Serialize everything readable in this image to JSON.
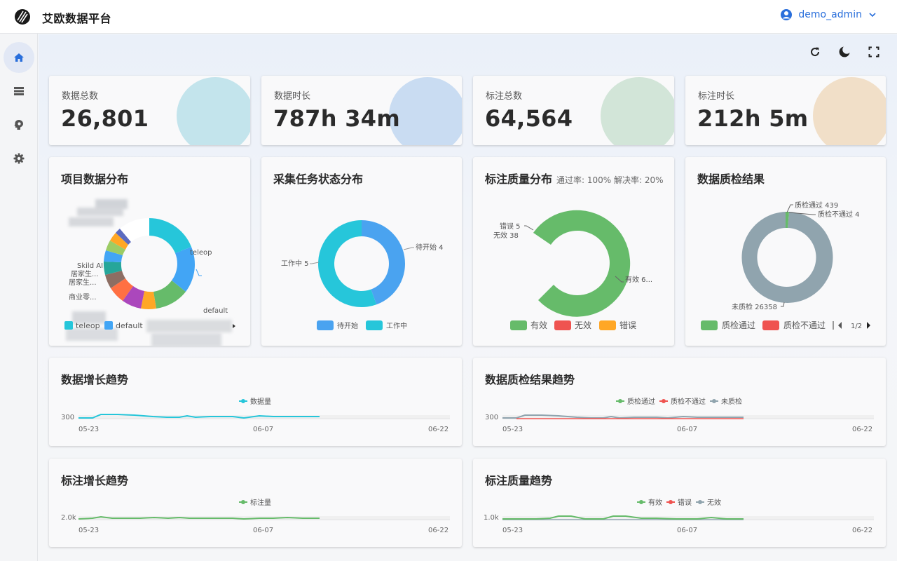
{
  "app": {
    "title": "艾欧数据平台",
    "user": "demo_admin"
  },
  "sidebar": {
    "items": [
      {
        "name": "home",
        "icon": "home-icon",
        "active": true
      },
      {
        "name": "data",
        "icon": "storage-icon",
        "active": false
      },
      {
        "name": "model",
        "icon": "brain-icon",
        "active": false
      },
      {
        "name": "settings",
        "icon": "gear-icon",
        "active": false
      }
    ]
  },
  "toolbar": [
    "refresh-icon",
    "dark-mode-icon",
    "fullscreen-icon"
  ],
  "stats": [
    {
      "label": "数据总数",
      "value": "26,801",
      "color": "#c3e4ec"
    },
    {
      "label": "数据时长",
      "value": "787h 34m",
      "color": "#c9dcf2"
    },
    {
      "label": "标注总数",
      "value": "64,564",
      "color": "#d2e5d8"
    },
    {
      "label": "标注时长",
      "value": "212h 5m",
      "color": "#f1dfc8"
    }
  ],
  "project_dist": {
    "title": "项目数据分布",
    "labels": [
      "teleop",
      "default",
      "Skild AI",
      "居家生...",
      "居家生...",
      "商业零..."
    ],
    "legend": [
      "teleop",
      "default"
    ]
  },
  "task_status": {
    "title": "采集任务状态分布",
    "slices": [
      {
        "name": "待开始",
        "value": 4,
        "label": "待开始 4",
        "color": "#4aa3f0"
      },
      {
        "name": "工作中",
        "value": 5,
        "label": "工作中 5",
        "color": "#26c6da"
      }
    ]
  },
  "quality_dist": {
    "title": "标注质量分布",
    "subtitle": "通过率: 100% 解决率: 20%",
    "labels": [
      "错误 5",
      "无效 38",
      "有效 6..."
    ],
    "legend": [
      {
        "name": "有效",
        "color": "#66bb6a"
      },
      {
        "name": "无效",
        "color": "#ef5350"
      },
      {
        "name": "错误",
        "color": "#ffa726"
      }
    ]
  },
  "qc_result": {
    "title": "数据质检结果",
    "labels": [
      "质检通过 439",
      "质检不通过 4",
      "未质检 26358"
    ],
    "legend": [
      {
        "name": "质检通过",
        "color": "#66bb6a"
      },
      {
        "name": "质检不通过",
        "color": "#ef5350"
      }
    ],
    "page": "1/2"
  },
  "trend_data": {
    "title": "数据增长趋势",
    "legend": [
      "数据量"
    ],
    "ytick": "300",
    "xticks": [
      "05-23",
      "06-07",
      "06-22"
    ]
  },
  "trend_qc": {
    "title": "数据质检结果趋势",
    "legend": [
      "质检通过",
      "质检不通过",
      "未质检"
    ],
    "ytick": "300",
    "xticks": [
      "05-23",
      "06-07",
      "06-22"
    ]
  },
  "trend_anno": {
    "title": "标注增长趋势",
    "legend": [
      "标注量"
    ],
    "ytick": "2.0k",
    "xticks": [
      "05-23",
      "06-07",
      "06-22"
    ]
  },
  "trend_quality": {
    "title": "标注质量趋势",
    "legend": [
      "有效",
      "错误",
      "无效"
    ],
    "ytick": "1.0k",
    "xticks": [
      "05-23",
      "06-07",
      "06-22"
    ]
  },
  "chart_data": [
    {
      "type": "pie",
      "title": "采集任务状态分布",
      "categories": [
        "待开始",
        "工作中"
      ],
      "values": [
        4,
        5
      ]
    },
    {
      "type": "pie",
      "title": "标注质量分布",
      "categories": [
        "有效",
        "无效",
        "错误"
      ],
      "values": [
        null,
        38,
        5
      ]
    },
    {
      "type": "pie",
      "title": "数据质检结果",
      "categories": [
        "质检通过",
        "质检不通过",
        "未质检"
      ],
      "values": [
        439,
        4,
        26358
      ]
    }
  ]
}
